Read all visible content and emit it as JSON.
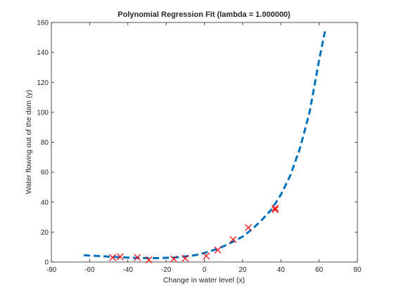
{
  "chart_data": {
    "type": "scatter",
    "title": "Polynomial Regression Fit (lambda = 1.000000)",
    "xlabel": "Change in water level (x)",
    "ylabel": "Water flowing out of the dam (y)",
    "xlim": [
      -80,
      80
    ],
    "ylim": [
      0,
      160
    ],
    "xticks": [
      -80,
      -60,
      -40,
      -20,
      0,
      20,
      40,
      60,
      80
    ],
    "yticks": [
      0,
      20,
      40,
      60,
      80,
      100,
      120,
      140,
      160
    ],
    "grid": false,
    "legend": "none",
    "series": [
      {
        "kind": "points",
        "marker": "x",
        "color": "#ff0000",
        "x": [
          -48,
          -44,
          -35,
          -29,
          -16,
          -10,
          1,
          7,
          15,
          23,
          37,
          37
        ],
        "y": [
          3,
          3.5,
          3,
          1.5,
          2,
          2.5,
          4,
          8,
          15,
          23,
          36,
          35
        ]
      },
      {
        "kind": "fit-line",
        "style": "dashed",
        "color": "#0072bd",
        "x": [
          -63,
          -55,
          -45,
          -35,
          -30,
          -25,
          -15,
          -5,
          0,
          5,
          10,
          15,
          20,
          25,
          30,
          35,
          40,
          45,
          50,
          55,
          60,
          63
        ],
        "y": [
          4.5,
          4,
          3.2,
          2.7,
          2.6,
          2.6,
          3,
          4.5,
          6,
          8,
          10.5,
          13.5,
          17,
          22,
          28,
          35,
          45,
          58,
          76,
          100,
          135,
          154
        ]
      }
    ]
  },
  "colors": {
    "axis": "#262626",
    "points": "#ff0000",
    "fit": "#0072bd"
  }
}
